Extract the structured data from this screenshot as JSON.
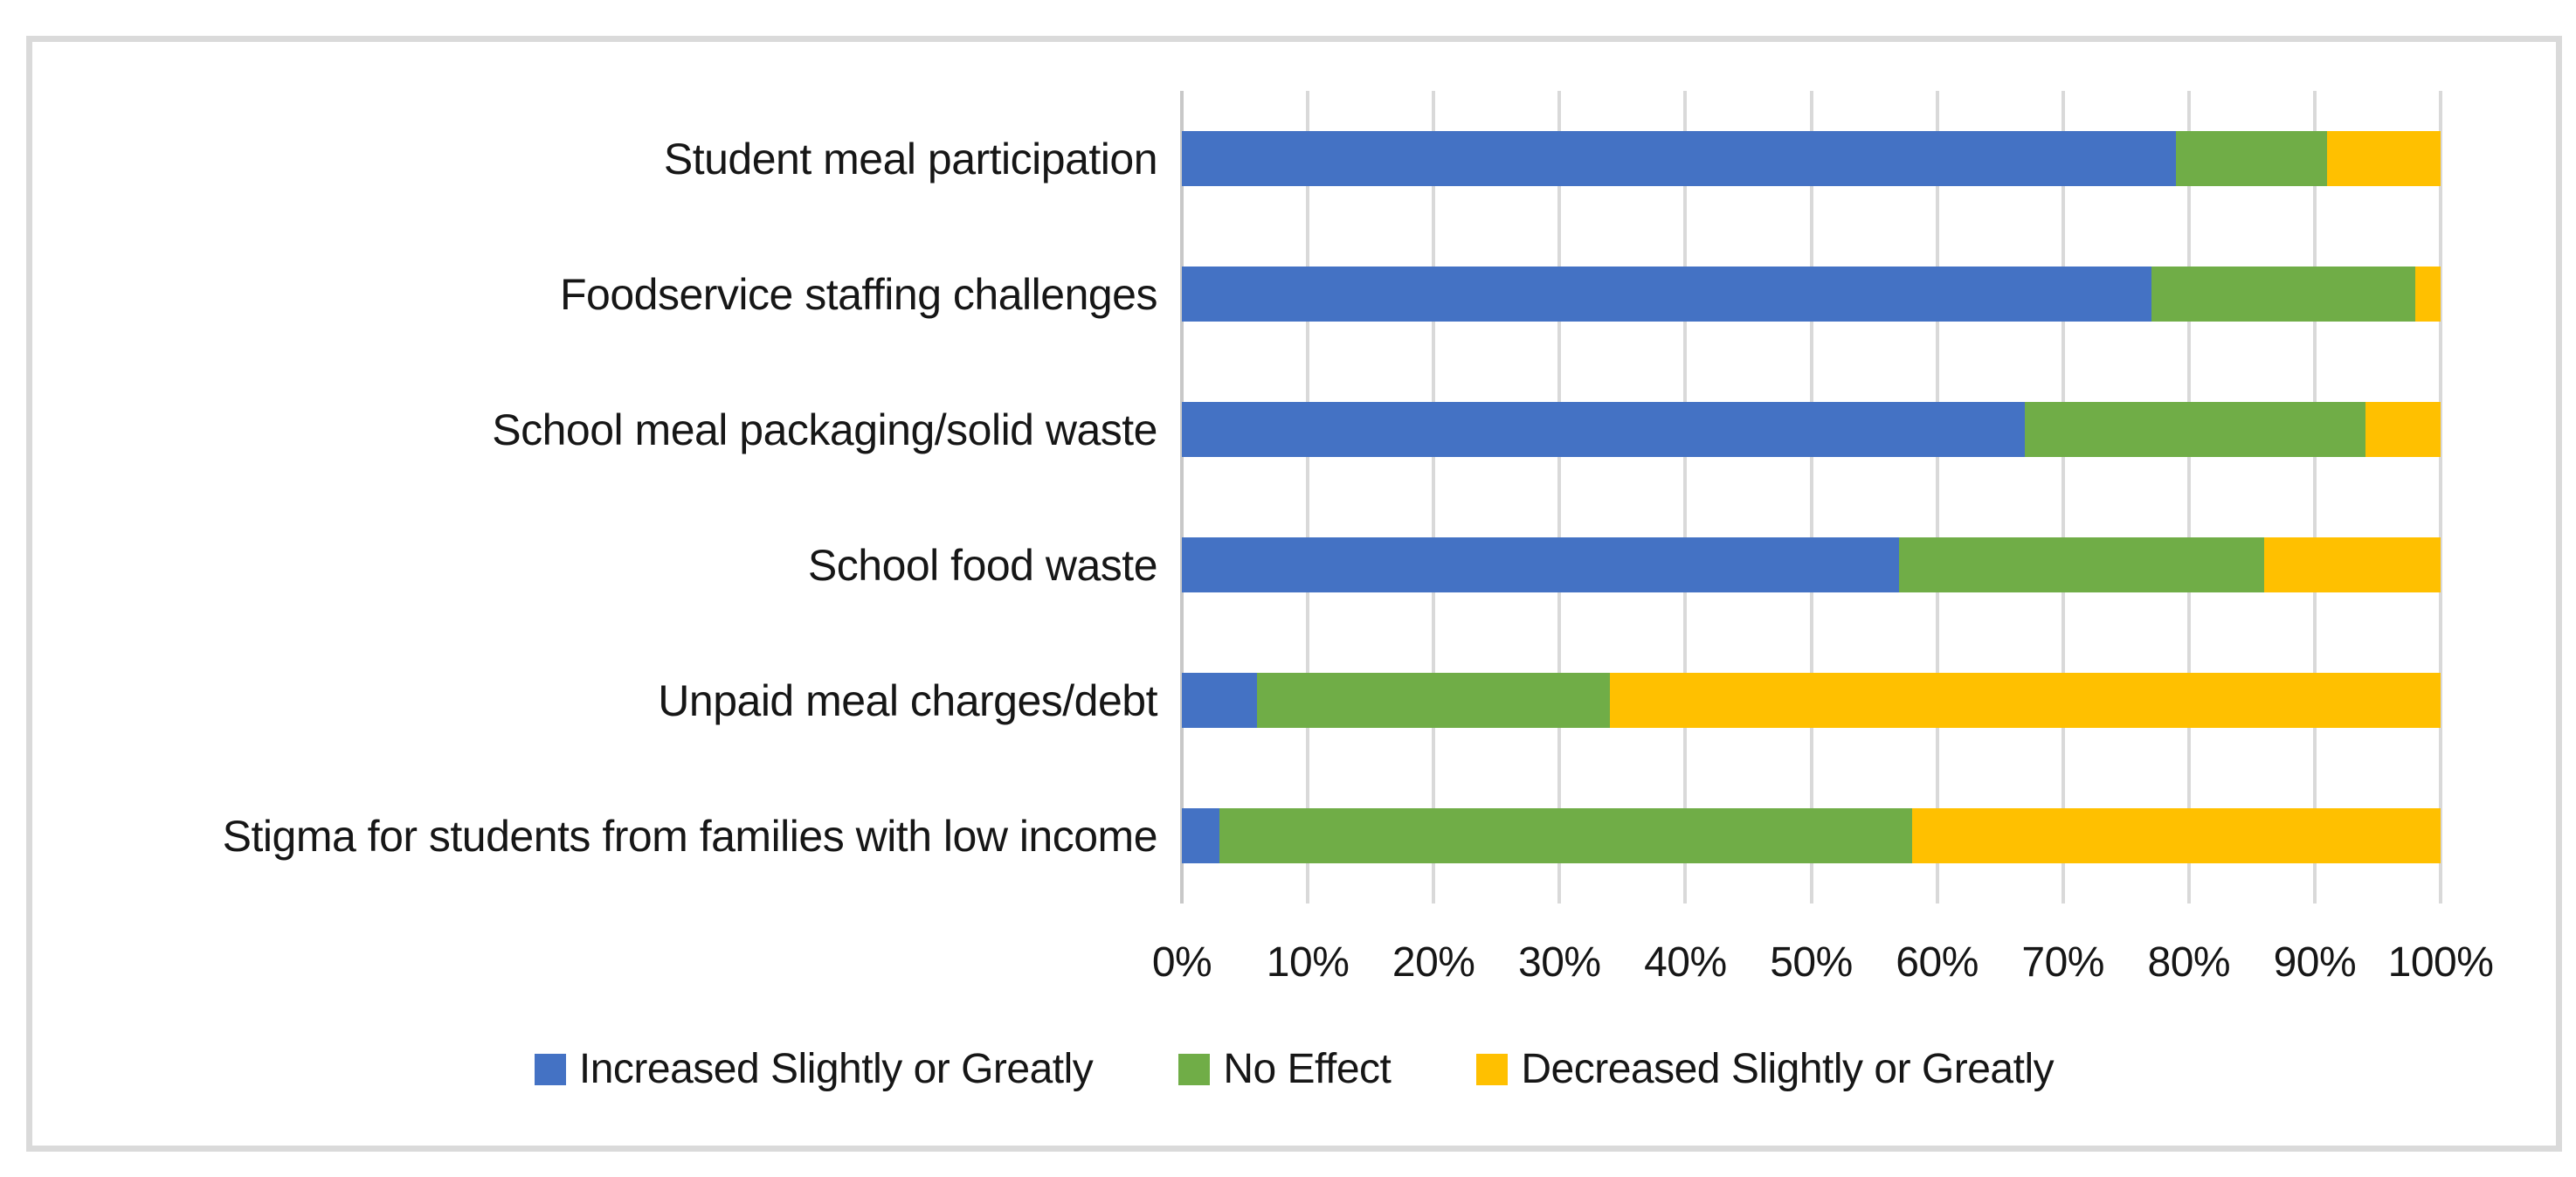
{
  "colors": {
    "background": "#FFFFFF",
    "frame_border": "#DADADA",
    "gridline": "#D9D9D9",
    "axis_line": "#C8C8C8",
    "text": "#161616",
    "series_blue": "#4472C4",
    "series_green": "#70AD47",
    "series_yellow": "#FFC000"
  },
  "chart_data": {
    "type": "bar",
    "orientation": "horizontal-stacked",
    "title": "",
    "xlabel": "",
    "ylabel": "",
    "xlim": [
      0,
      100
    ],
    "grid": "vertical",
    "legend_position": "bottom",
    "categories": [
      "Student meal participation",
      "Foodservice staffing challenges",
      "School meal packaging/solid waste",
      "School food waste",
      "Unpaid meal charges/debt",
      "Stigma for students from families with low income"
    ],
    "series": [
      {
        "name": "Increased Slightly or Greatly",
        "color": "#4472C4",
        "values": [
          79,
          77,
          67,
          57,
          6,
          3
        ]
      },
      {
        "name": "No Effect",
        "color": "#70AD47",
        "values": [
          12,
          21,
          27,
          29,
          28,
          55
        ]
      },
      {
        "name": "Decreased Slightly or Greatly",
        "color": "#FFC000",
        "values": [
          9,
          2,
          6,
          14,
          66,
          42
        ]
      }
    ],
    "x_ticks": [
      "0%",
      "10%",
      "20%",
      "30%",
      "40%",
      "50%",
      "60%",
      "70%",
      "80%",
      "90%",
      "100%"
    ]
  }
}
